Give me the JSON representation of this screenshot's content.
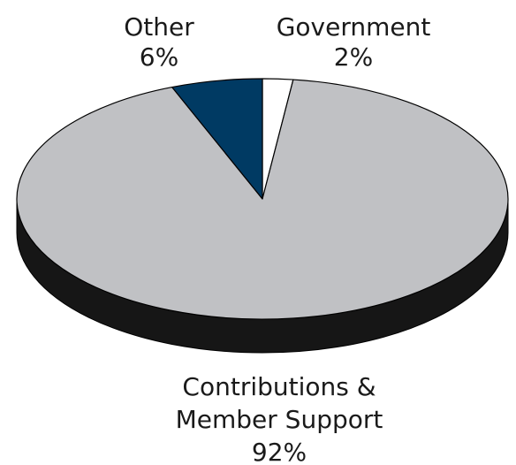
{
  "chart_data": {
    "type": "pie",
    "style": "3d",
    "slices": [
      {
        "label_lines": [
          "Government",
          "2%"
        ],
        "value": 2,
        "color": "#ffffff"
      },
      {
        "label_lines": [
          "Contributions &",
          "Member Support",
          "92%"
        ],
        "value": 92,
        "color": "#c0c1c4"
      },
      {
        "label_lines": [
          "Other",
          "6%"
        ],
        "value": 6,
        "color": "#003a63"
      }
    ],
    "side_color": "#161616",
    "outline_color": "#000000"
  }
}
